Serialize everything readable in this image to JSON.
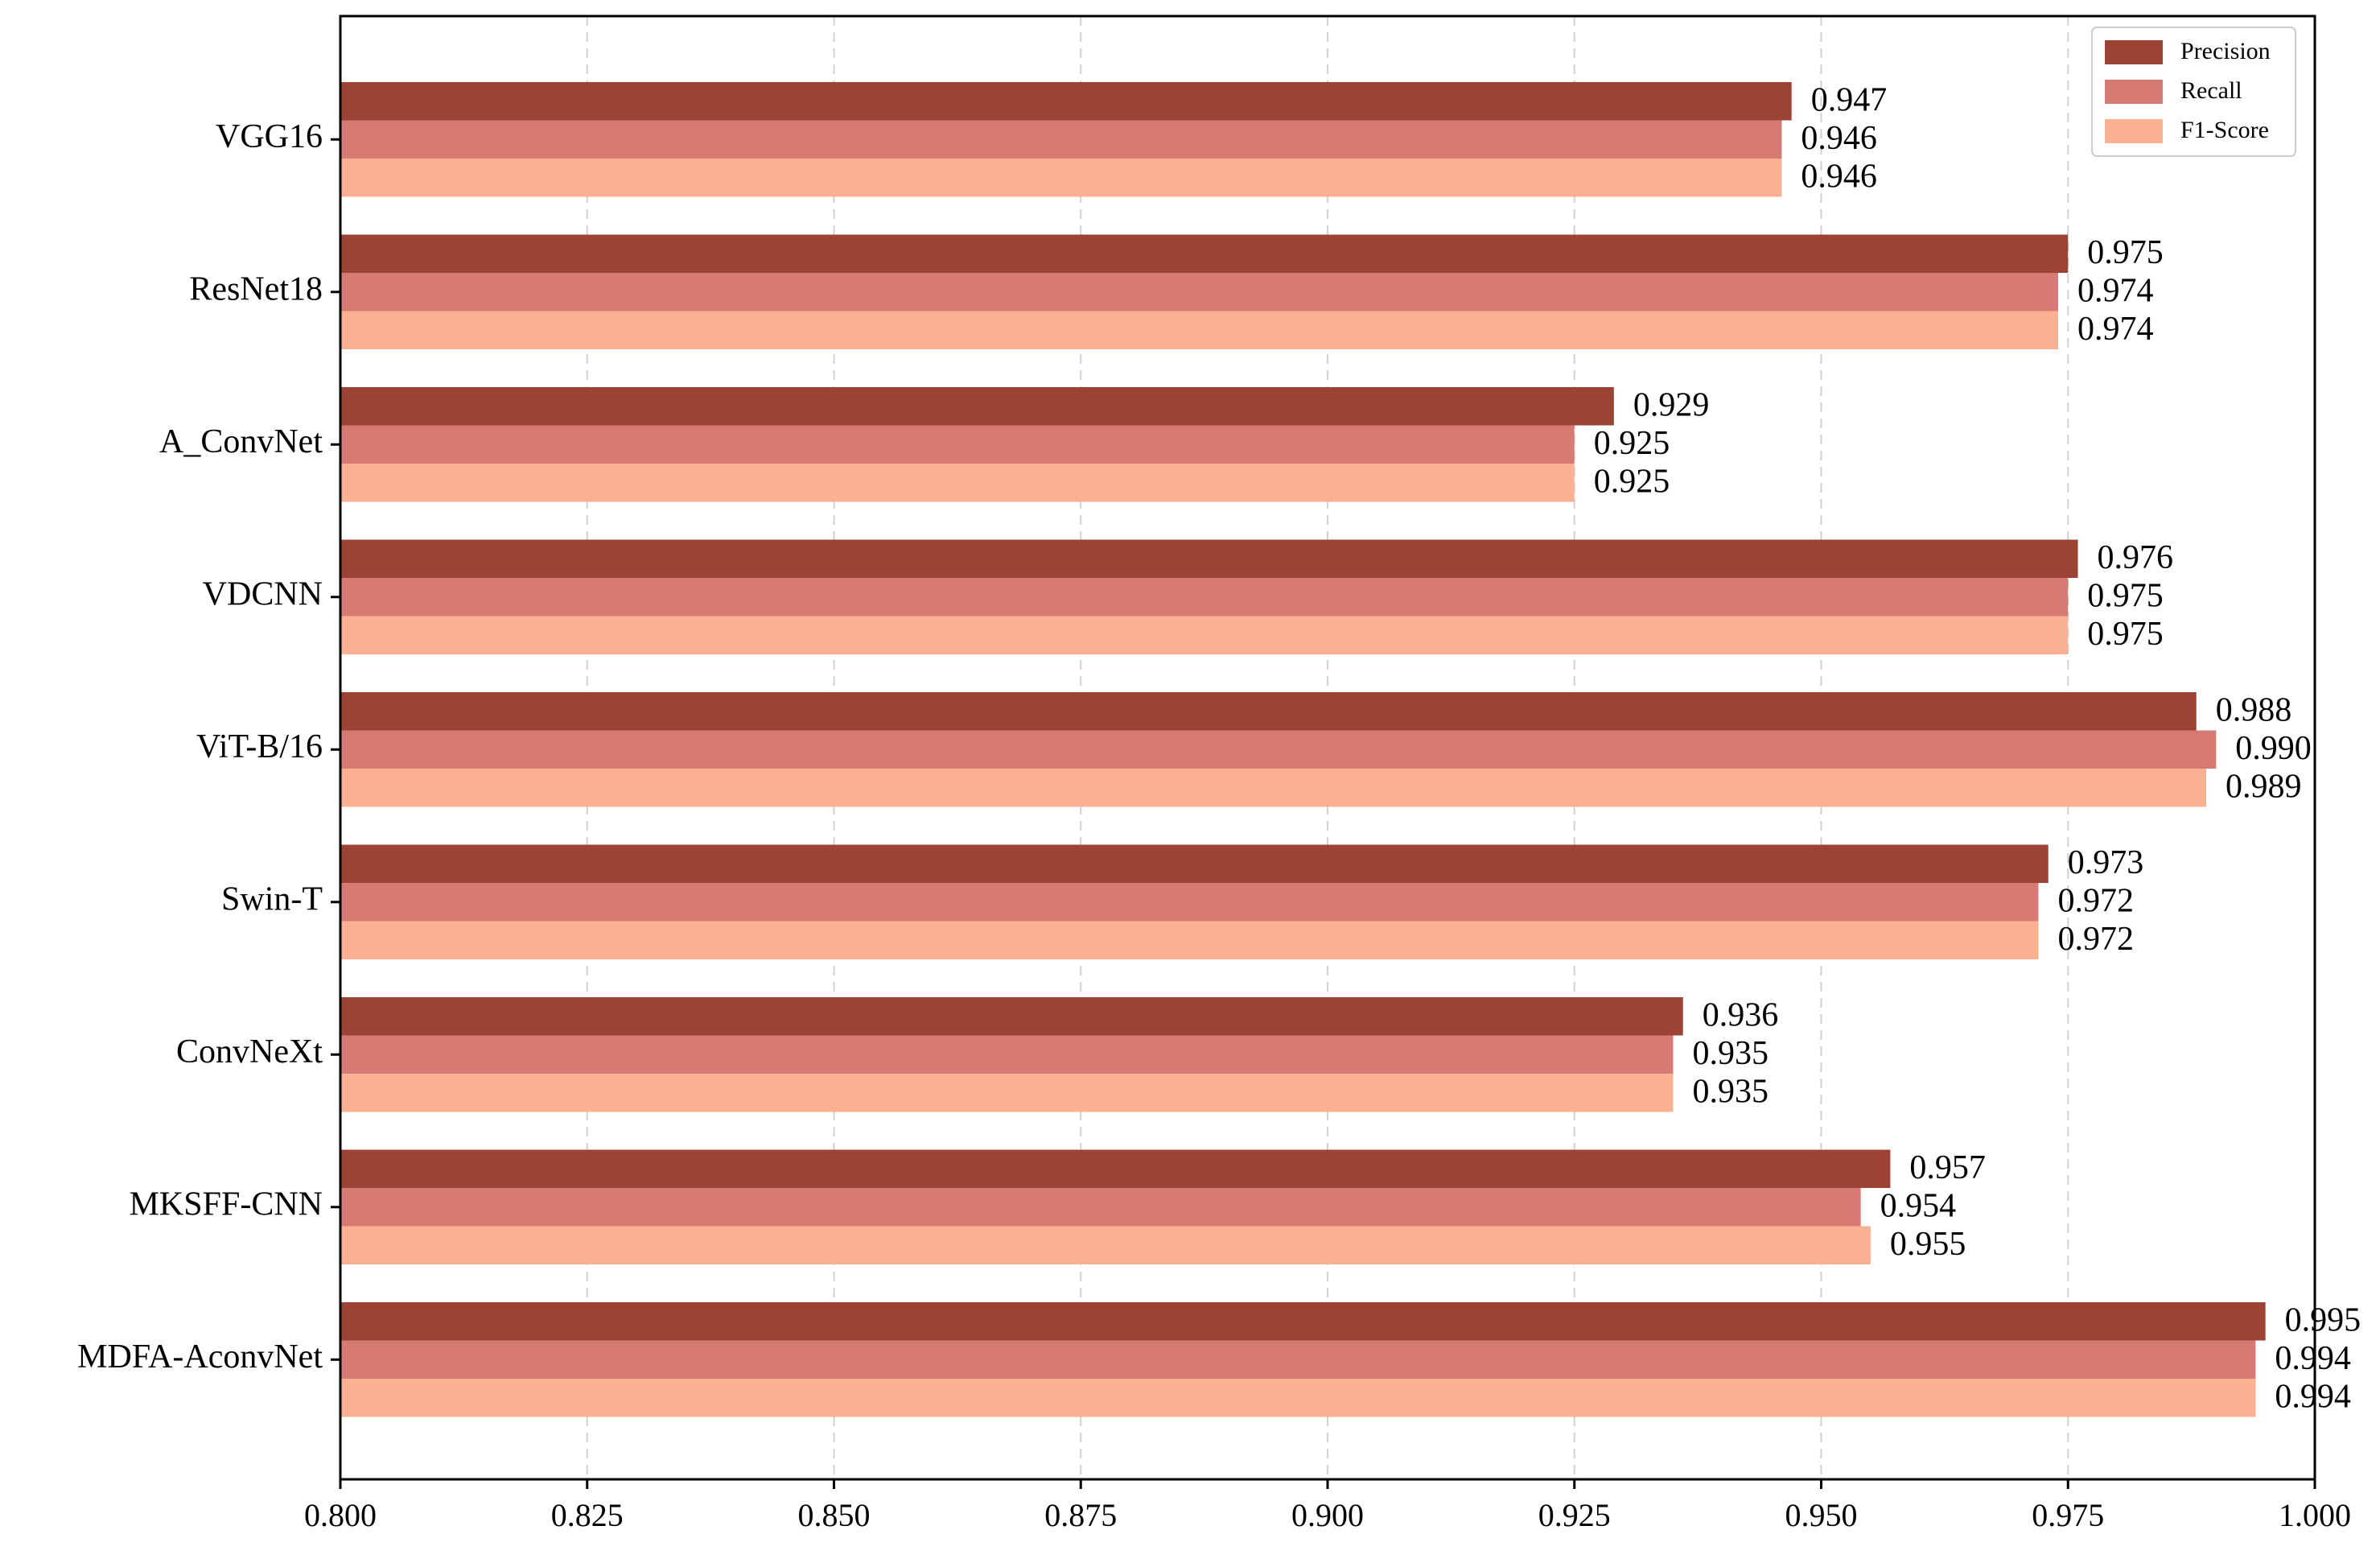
{
  "chart_data": {
    "type": "bar",
    "orientation": "horizontal",
    "categories": [
      "VGG16",
      "ResNet18",
      "A_ConvNet",
      "VDCNN",
      "ViT-B/16",
      "Swin-T",
      "ConvNeXt",
      "MKSFF-CNN",
      "MDFA-AconvNet"
    ],
    "series": [
      {
        "name": "Precision",
        "color": "#9c4335",
        "values": [
          0.947,
          0.975,
          0.929,
          0.976,
          0.988,
          0.973,
          0.936,
          0.957,
          0.995
        ]
      },
      {
        "name": "Recall",
        "color": "#d67a73",
        "values": [
          0.946,
          0.974,
          0.925,
          0.975,
          0.99,
          0.972,
          0.935,
          0.954,
          0.994
        ]
      },
      {
        "name": "F1-Score",
        "color": "#f9b191",
        "values": [
          0.946,
          0.974,
          0.925,
          0.975,
          0.989,
          0.972,
          0.935,
          0.955,
          0.994
        ]
      }
    ],
    "data_labels": [
      [
        "0.947",
        "0.946",
        "0.946"
      ],
      [
        "0.975",
        "0.974",
        "0.974"
      ],
      [
        "0.929",
        "0.925",
        "0.925"
      ],
      [
        "0.976",
        "0.975",
        "0.975"
      ],
      [
        "0.988",
        "0.990",
        "0.989"
      ],
      [
        "0.973",
        "0.972",
        "0.972"
      ],
      [
        "0.936",
        "0.935",
        "0.935"
      ],
      [
        "0.957",
        "0.954",
        "0.955"
      ],
      [
        "0.995",
        "0.994",
        "0.994"
      ]
    ],
    "xlim": [
      0.8,
      1.0
    ],
    "xticks": [
      "0.800",
      "0.825",
      "0.850",
      "0.875",
      "0.900",
      "0.925",
      "0.950",
      "0.975",
      "1.000"
    ],
    "title": "",
    "xlabel": "",
    "ylabel": "",
    "grid": "vertical dashed",
    "legend_position": "top-right"
  }
}
